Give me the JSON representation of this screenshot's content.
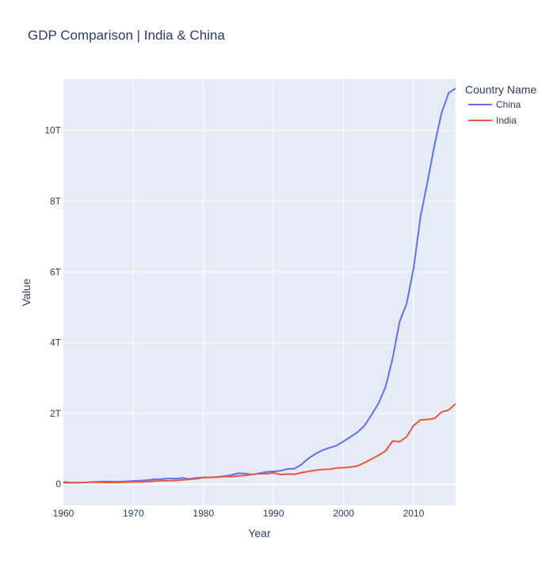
{
  "chart_data": {
    "type": "line",
    "title": "GDP Comparison | India & China",
    "xlabel": "Year",
    "ylabel": "Value",
    "xlim": [
      1960,
      2016
    ],
    "ylim": [
      -0.6,
      11.45
    ],
    "y_unit": "trillion",
    "x_ticks": [
      1960,
      1970,
      1980,
      1990,
      2000,
      2010
    ],
    "x_tick_labels": [
      "1960",
      "1970",
      "1980",
      "1990",
      "2000",
      "2010"
    ],
    "y_ticks": [
      0,
      2,
      4,
      6,
      8,
      10
    ],
    "y_tick_labels": [
      "0",
      "2T",
      "4T",
      "6T",
      "8T",
      "10T"
    ],
    "grid": true,
    "legend": {
      "title": "Country Name",
      "position": "right"
    },
    "background": "#e5ecf6",
    "series": [
      {
        "name": "China",
        "color": "#636efa",
        "x": [
          1960,
          1961,
          1962,
          1963,
          1964,
          1965,
          1966,
          1967,
          1968,
          1969,
          1970,
          1971,
          1972,
          1973,
          1974,
          1975,
          1976,
          1977,
          1978,
          1979,
          1980,
          1981,
          1982,
          1983,
          1984,
          1985,
          1986,
          1987,
          1988,
          1989,
          1990,
          1991,
          1992,
          1993,
          1994,
          1995,
          1996,
          1997,
          1998,
          1999,
          2000,
          2001,
          2002,
          2003,
          2004,
          2005,
          2006,
          2007,
          2008,
          2009,
          2010,
          2011,
          2012,
          2013,
          2014,
          2015,
          2016
        ],
        "y": [
          0.06,
          0.05,
          0.047,
          0.05,
          0.06,
          0.07,
          0.076,
          0.072,
          0.07,
          0.079,
          0.093,
          0.1,
          0.114,
          0.139,
          0.144,
          0.163,
          0.154,
          0.175,
          0.149,
          0.178,
          0.191,
          0.196,
          0.205,
          0.23,
          0.26,
          0.31,
          0.3,
          0.27,
          0.31,
          0.35,
          0.36,
          0.38,
          0.43,
          0.44,
          0.56,
          0.73,
          0.86,
          0.96,
          1.03,
          1.09,
          1.21,
          1.34,
          1.47,
          1.66,
          1.96,
          2.29,
          2.75,
          3.55,
          4.59,
          5.1,
          6.1,
          7.57,
          8.56,
          9.6,
          10.5,
          11.06,
          11.19
        ]
      },
      {
        "name": "India",
        "color": "#ef553b",
        "x": [
          1960,
          1961,
          1962,
          1963,
          1964,
          1965,
          1966,
          1967,
          1968,
          1969,
          1970,
          1971,
          1972,
          1973,
          1974,
          1975,
          1976,
          1977,
          1978,
          1979,
          1980,
          1981,
          1982,
          1983,
          1984,
          1985,
          1986,
          1987,
          1988,
          1989,
          1990,
          1991,
          1992,
          1993,
          1994,
          1995,
          1996,
          1997,
          1998,
          1999,
          2000,
          2001,
          2002,
          2003,
          2004,
          2005,
          2006,
          2007,
          2008,
          2009,
          2010,
          2011,
          2012,
          2013,
          2014,
          2015,
          2016
        ],
        "y": [
          0.037,
          0.039,
          0.042,
          0.048,
          0.056,
          0.059,
          0.046,
          0.05,
          0.053,
          0.058,
          0.062,
          0.067,
          0.071,
          0.085,
          0.099,
          0.098,
          0.102,
          0.121,
          0.137,
          0.153,
          0.186,
          0.193,
          0.2,
          0.218,
          0.212,
          0.232,
          0.249,
          0.279,
          0.297,
          0.296,
          0.321,
          0.27,
          0.288,
          0.279,
          0.327,
          0.36,
          0.393,
          0.415,
          0.421,
          0.459,
          0.468,
          0.485,
          0.515,
          0.608,
          0.709,
          0.82,
          0.94,
          1.22,
          1.2,
          1.34,
          1.66,
          1.82,
          1.83,
          1.86,
          2.04,
          2.1,
          2.27
        ]
      }
    ]
  }
}
